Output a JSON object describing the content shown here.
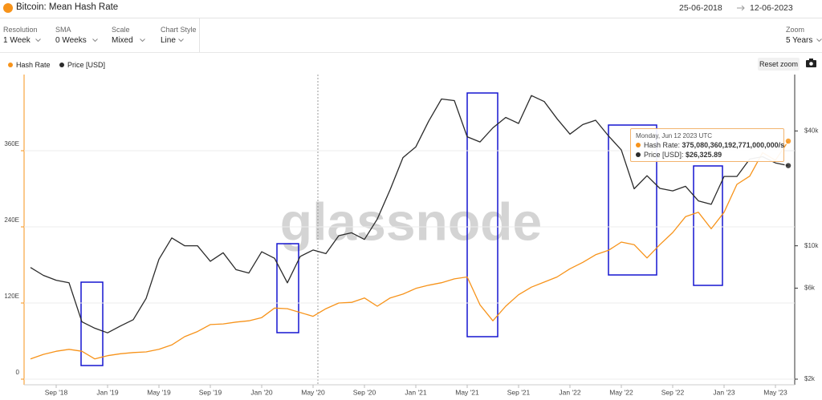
{
  "header": {
    "title": "Bitcoin: Mean Hash Rate",
    "date_from": "25-06-2018",
    "date_to": "12-06-2023"
  },
  "controls": [
    {
      "label": "Resolution",
      "value": "1 Week"
    },
    {
      "label": "SMA",
      "value": "0 Weeks"
    },
    {
      "label": "Scale",
      "value": "Mixed"
    },
    {
      "label": "Chart Style",
      "value": "Line"
    }
  ],
  "zoom": {
    "label": "Zoom",
    "value": "5 Years"
  },
  "reset_zoom": "Reset zoom",
  "watermark": "glassnode",
  "tooltip": {
    "date": "Monday, Jun 12 2023 UTC",
    "items": [
      {
        "label": "Hash Rate:",
        "value": "375,080,360,192,771,000,000/s"
      },
      {
        "label": "Price [USD]:",
        "value": "$26,325.89"
      }
    ]
  },
  "chart_data": {
    "type": "line",
    "x": [
      "2018-07",
      "2018-08",
      "2018-09",
      "2018-10",
      "2018-11",
      "2018-12",
      "2019-01",
      "2019-02",
      "2019-03",
      "2019-04",
      "2019-05",
      "2019-06",
      "2019-07",
      "2019-08",
      "2019-09",
      "2019-10",
      "2019-11",
      "2019-12",
      "2020-01",
      "2020-02",
      "2020-03",
      "2020-04",
      "2020-05",
      "2020-06",
      "2020-07",
      "2020-08",
      "2020-09",
      "2020-10",
      "2020-11",
      "2020-12",
      "2021-01",
      "2021-02",
      "2021-03",
      "2021-04",
      "2021-05",
      "2021-06",
      "2021-07",
      "2021-08",
      "2021-09",
      "2021-10",
      "2021-11",
      "2021-12",
      "2022-01",
      "2022-02",
      "2022-03",
      "2022-04",
      "2022-05",
      "2022-06",
      "2022-07",
      "2022-08",
      "2022-09",
      "2022-10",
      "2022-11",
      "2022-12",
      "2023-01",
      "2023-02",
      "2023-03",
      "2023-04",
      "2023-05",
      "2023-06"
    ],
    "series": [
      {
        "name": "Hash Rate",
        "color": "#f7931a",
        "axis": "y",
        "values": [
          32,
          39,
          44,
          47,
          44,
          32,
          37,
          40,
          42,
          43,
          47,
          54,
          67,
          75,
          86,
          87,
          90,
          92,
          97,
          112,
          111,
          105,
          99,
          111,
          120,
          121,
          128,
          115,
          128,
          134,
          143,
          148,
          152,
          158,
          161,
          117,
          92,
          115,
          133,
          145,
          153,
          161,
          174,
          184,
          196,
          203,
          216,
          212,
          191,
          212,
          231,
          256,
          263,
          237,
          263,
          307,
          320,
          357,
          345,
          375.08
        ]
      },
      {
        "name": "Price [USD]",
        "color": "#2b2b2b",
        "axis": "y2",
        "values": [
          7700,
          7000,
          6600,
          6400,
          4000,
          3700,
          3500,
          3800,
          4100,
          5300,
          8500,
          11000,
          10000,
          10000,
          8300,
          9200,
          7500,
          7200,
          9300,
          8600,
          6400,
          8800,
          9500,
          9100,
          11300,
          11700,
          10800,
          13800,
          19700,
          29000,
          33000,
          45000,
          58800,
          57700,
          37300,
          35000,
          41500,
          47100,
          43800,
          61300,
          57000,
          46300,
          38500,
          43200,
          45500,
          37700,
          31800,
          19900,
          23300,
          20000,
          19400,
          20500,
          17200,
          16500,
          23100,
          23100,
          28500,
          29300,
          27200,
          26325.89
        ]
      }
    ],
    "ylim": [
      0,
      480
    ],
    "yticks": [
      0,
      {
        "value": 120,
        "label": "120E"
      },
      {
        "value": 240,
        "label": "240E"
      },
      {
        "value": 360,
        "label": "360E"
      }
    ],
    "y2lim": [
      2000,
      79000
    ],
    "y2scale": "log",
    "y2ticks": [
      {
        "value": 2000,
        "label": "$2k"
      },
      {
        "value": 6000,
        "label": "$6k"
      },
      {
        "value": 10000,
        "label": "$10k"
      },
      {
        "value": 40000,
        "label": "$40k"
      }
    ],
    "xticks": [
      {
        "value": "2018-09",
        "label": "Sep '18"
      },
      {
        "value": "2019-01",
        "label": "Jan '19"
      },
      {
        "value": "2019-05",
        "label": "May '19"
      },
      {
        "value": "2019-09",
        "label": "Sep '19"
      },
      {
        "value": "2020-01",
        "label": "Jan '20"
      },
      {
        "value": "2020-05",
        "label": "May '20"
      },
      {
        "value": "2020-09",
        "label": "Sep '20"
      },
      {
        "value": "2021-01",
        "label": "Jan '21"
      },
      {
        "value": "2021-05",
        "label": "May '21"
      },
      {
        "value": "2021-09",
        "label": "Sep '21"
      },
      {
        "value": "2022-01",
        "label": "Jan '22"
      },
      {
        "value": "2022-05",
        "label": "May '22"
      },
      {
        "value": "2022-09",
        "label": "Sep '22"
      },
      {
        "value": "2023-01",
        "label": "Jan '23"
      },
      {
        "value": "2023-05",
        "label": "May '23"
      }
    ],
    "grid": true,
    "legend": "top-left"
  }
}
